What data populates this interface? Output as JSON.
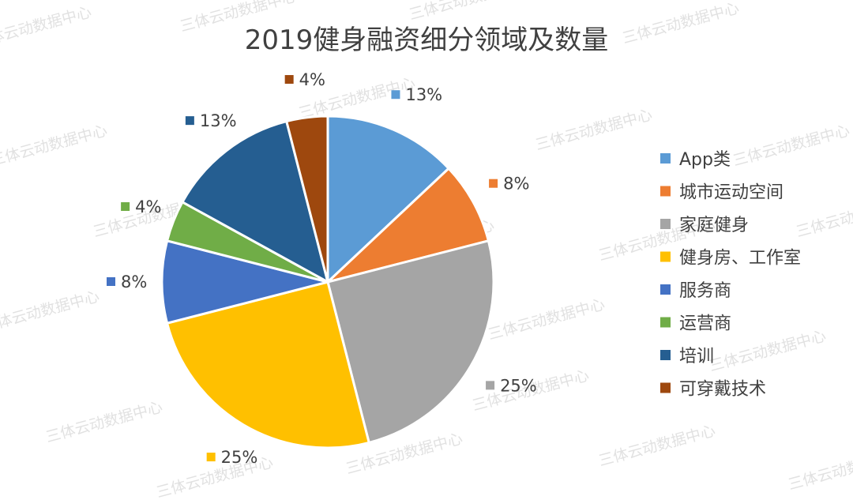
{
  "watermark": "三体云动数据中心",
  "chart_data": {
    "type": "pie",
    "title": "2019健身融资细分领域及数量",
    "legend_position": "right",
    "slices": [
      {
        "label": "App类",
        "value": 13,
        "display": "13%",
        "color": "#5b9bd5"
      },
      {
        "label": "城市运动空间",
        "value": 8,
        "display": "8%",
        "color": "#ed7d31"
      },
      {
        "label": "家庭健身",
        "value": 25,
        "display": "25%",
        "color": "#a5a5a5"
      },
      {
        "label": "健身房、工作室",
        "value": 25,
        "display": "25%",
        "color": "#ffc000"
      },
      {
        "label": "服务商",
        "value": 8,
        "display": "8%",
        "color": "#4472c4"
      },
      {
        "label": "运营商",
        "value": 4,
        "display": "4%",
        "color": "#70ad47"
      },
      {
        "label": "培训",
        "value": 13,
        "display": "13%",
        "color": "#255e91"
      },
      {
        "label": "可穿戴技术",
        "value": 4,
        "display": "4%",
        "color": "#9e480e"
      }
    ]
  }
}
